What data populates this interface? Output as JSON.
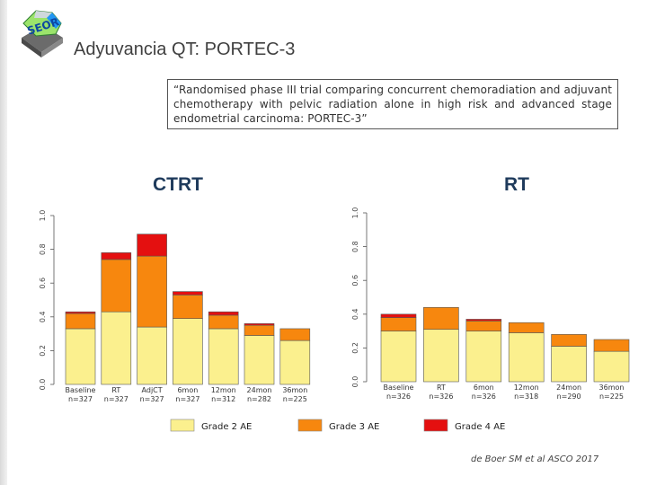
{
  "slide": {
    "title": "Adyuvancia QT: PORTEC-3",
    "logo_text": "SEOR",
    "quote": "“Randomised phase III trial comparing concurrent chemoradiation and adjuvant chemotherapy with pelvic radiation alone in high risk and advanced stage endometrial carcinoma: PORTEC-3”",
    "citation": "de Boer SM et al ASCO 2017"
  },
  "colors": {
    "grade2": "#fbf08e",
    "grade3": "#f7870e",
    "grade4": "#e41010",
    "panel_title": "#1f3b5c"
  },
  "legend": [
    {
      "label": "Grade 2 AE",
      "color": "#fbf08e"
    },
    {
      "label": "Grade 3 AE",
      "color": "#f7870e"
    },
    {
      "label": "Grade 4 AE",
      "color": "#e41010"
    }
  ],
  "chart_data": [
    {
      "type": "bar",
      "stacked": true,
      "title": "CTRT",
      "categories": [
        "Baseline",
        "RT",
        "AdjCT",
        "6mon",
        "12mon",
        "24mon",
        "36mon"
      ],
      "n_labels": [
        "n=327",
        "n=327",
        "n=327",
        "n=327",
        "n=312",
        "n=282",
        "n=225"
      ],
      "ylim": [
        0,
        1.0
      ],
      "yticks": [
        "0.0",
        "0.2",
        "0.4",
        "0.6",
        "0.8",
        "1.0"
      ],
      "series": [
        {
          "name": "Grade 2 AE",
          "values": [
            0.33,
            0.43,
            0.34,
            0.39,
            0.33,
            0.29,
            0.26
          ]
        },
        {
          "name": "Grade 3 AE",
          "values": [
            0.09,
            0.31,
            0.42,
            0.14,
            0.08,
            0.06,
            0.07
          ]
        },
        {
          "name": "Grade 4 AE",
          "values": [
            0.01,
            0.04,
            0.13,
            0.02,
            0.02,
            0.01,
            0.0
          ]
        }
      ]
    },
    {
      "type": "bar",
      "stacked": true,
      "title": "RT",
      "categories": [
        "Baseline",
        "RT",
        "6mon",
        "12mon",
        "24mon",
        "36mon"
      ],
      "n_labels": [
        "n=326",
        "n=326",
        "n=326",
        "n=318",
        "n=290",
        "n=225"
      ],
      "ylim": [
        0,
        1.0
      ],
      "yticks": [
        "0.0",
        "0.2",
        "0.4",
        "0.6",
        "0.8",
        "1.0"
      ],
      "series": [
        {
          "name": "Grade 2 AE",
          "values": [
            0.3,
            0.31,
            0.3,
            0.29,
            0.21,
            0.18
          ]
        },
        {
          "name": "Grade 3 AE",
          "values": [
            0.08,
            0.13,
            0.06,
            0.06,
            0.07,
            0.07
          ]
        },
        {
          "name": "Grade 4 AE",
          "values": [
            0.02,
            0.0,
            0.01,
            0.0,
            0.0,
            0.0
          ]
        }
      ]
    }
  ]
}
